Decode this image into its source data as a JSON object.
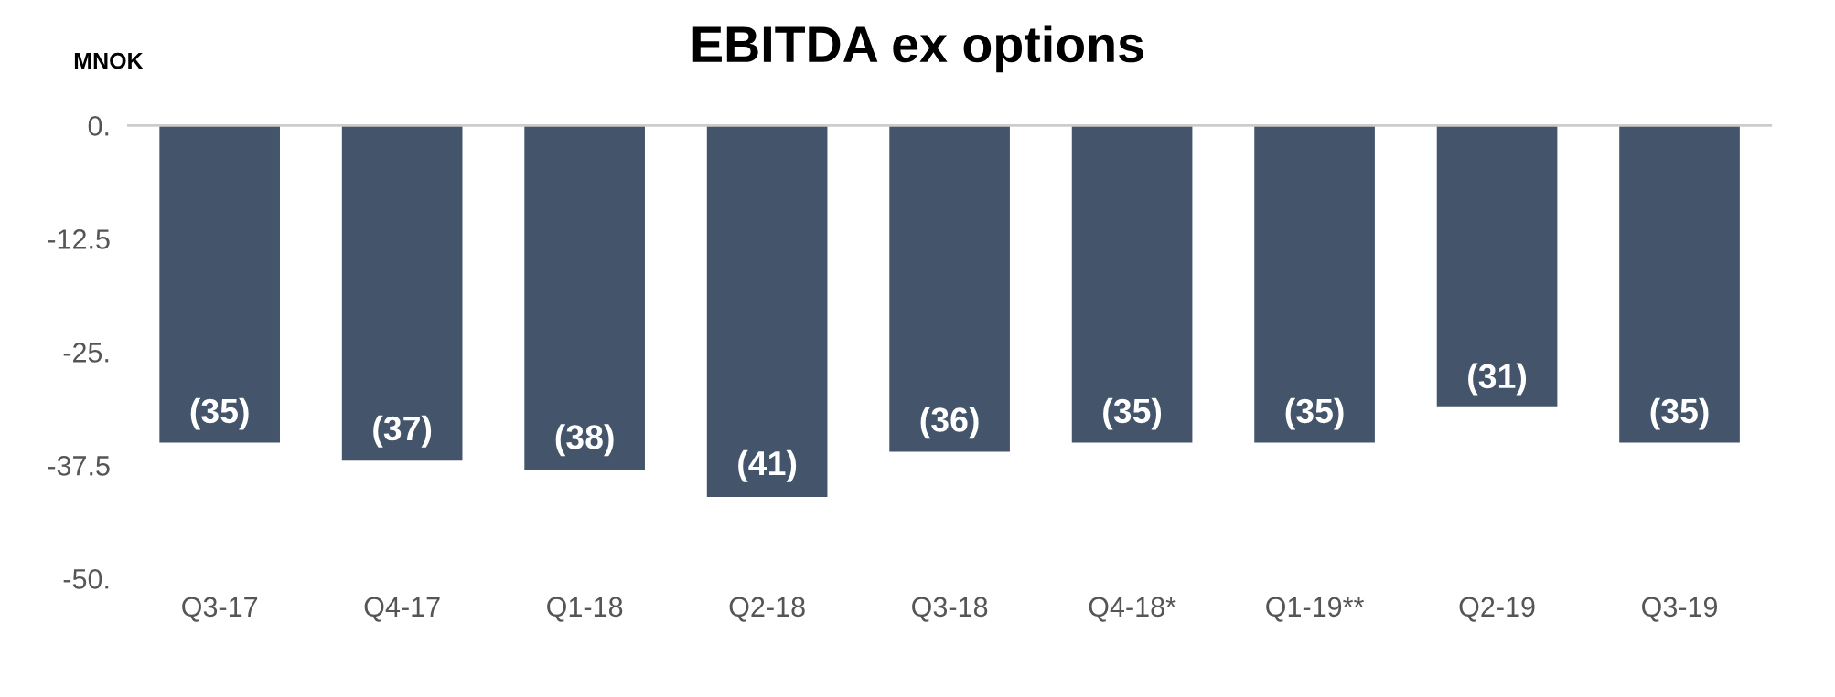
{
  "chart_data": {
    "type": "bar",
    "title": "EBITDA ex options",
    "ylabel": "MNOK",
    "categories": [
      "Q3-17",
      "Q4-17",
      "Q1-18",
      "Q2-18",
      "Q3-18",
      "Q4-18*",
      "Q1-19**",
      "Q2-19",
      "Q3-19"
    ],
    "values": [
      -35,
      -37,
      -38,
      -41,
      -36,
      -35,
      -35,
      -31,
      -35
    ],
    "value_labels": [
      "(35)",
      "(37)",
      "(38)",
      "(41)",
      "(36)",
      "(35)",
      "(35)",
      "(31)",
      "(35)"
    ],
    "color": "#44546a",
    "ylim": [
      -50,
      0
    ],
    "yticks": [
      {
        "value": 0,
        "label": "0."
      },
      {
        "value": -12.5,
        "label": "-12.5"
      },
      {
        "value": -25,
        "label": "-25."
      },
      {
        "value": -37.5,
        "label": "-37.5"
      },
      {
        "value": -50,
        "label": "-50."
      }
    ],
    "grid": false,
    "legend": false
  }
}
